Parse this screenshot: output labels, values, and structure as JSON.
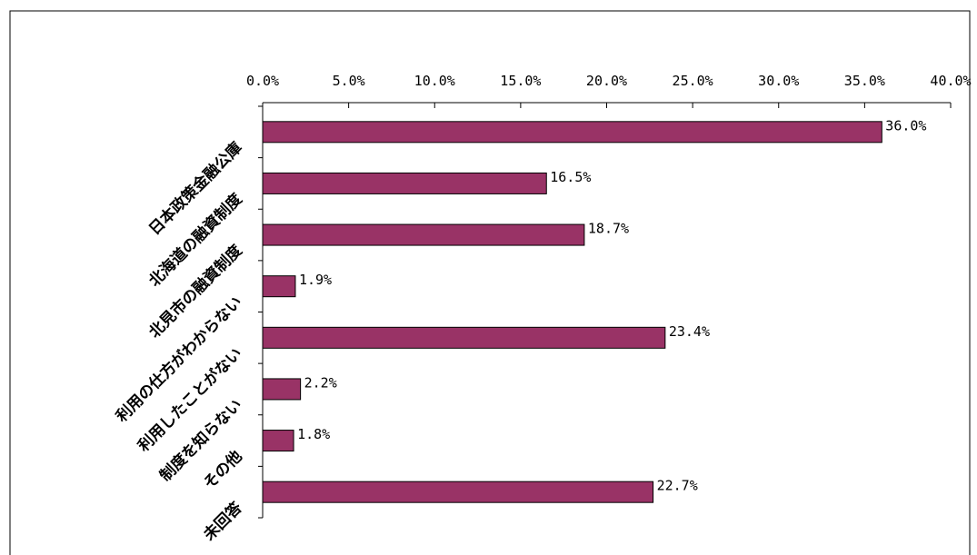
{
  "chart_data": {
    "type": "bar",
    "orientation": "horizontal",
    "categories": [
      "日本政策金融公庫",
      "北海道の融資制度",
      "北見市の融資制度",
      "利用の仕方がわからない",
      "利用したことがない",
      "制度を知らない",
      "その他",
      "未回答"
    ],
    "values": [
      36.0,
      16.5,
      18.7,
      1.9,
      23.4,
      2.2,
      1.8,
      22.7
    ],
    "value_labels": [
      "36.0%",
      "16.5%",
      "18.7%",
      "1.9%",
      "23.4%",
      "2.2%",
      "1.8%",
      "22.7%"
    ],
    "x_ticks": [
      "0.0%",
      "5.0%",
      "10.0%",
      "15.0%",
      "20.0%",
      "25.0%",
      "30.0%",
      "35.0%",
      "40.0%"
    ],
    "xlim": [
      0,
      40
    ],
    "x_axis_position": "top",
    "grid": false,
    "legend": "none",
    "bar_color": "#993366",
    "bar_border_color": "#000000"
  }
}
